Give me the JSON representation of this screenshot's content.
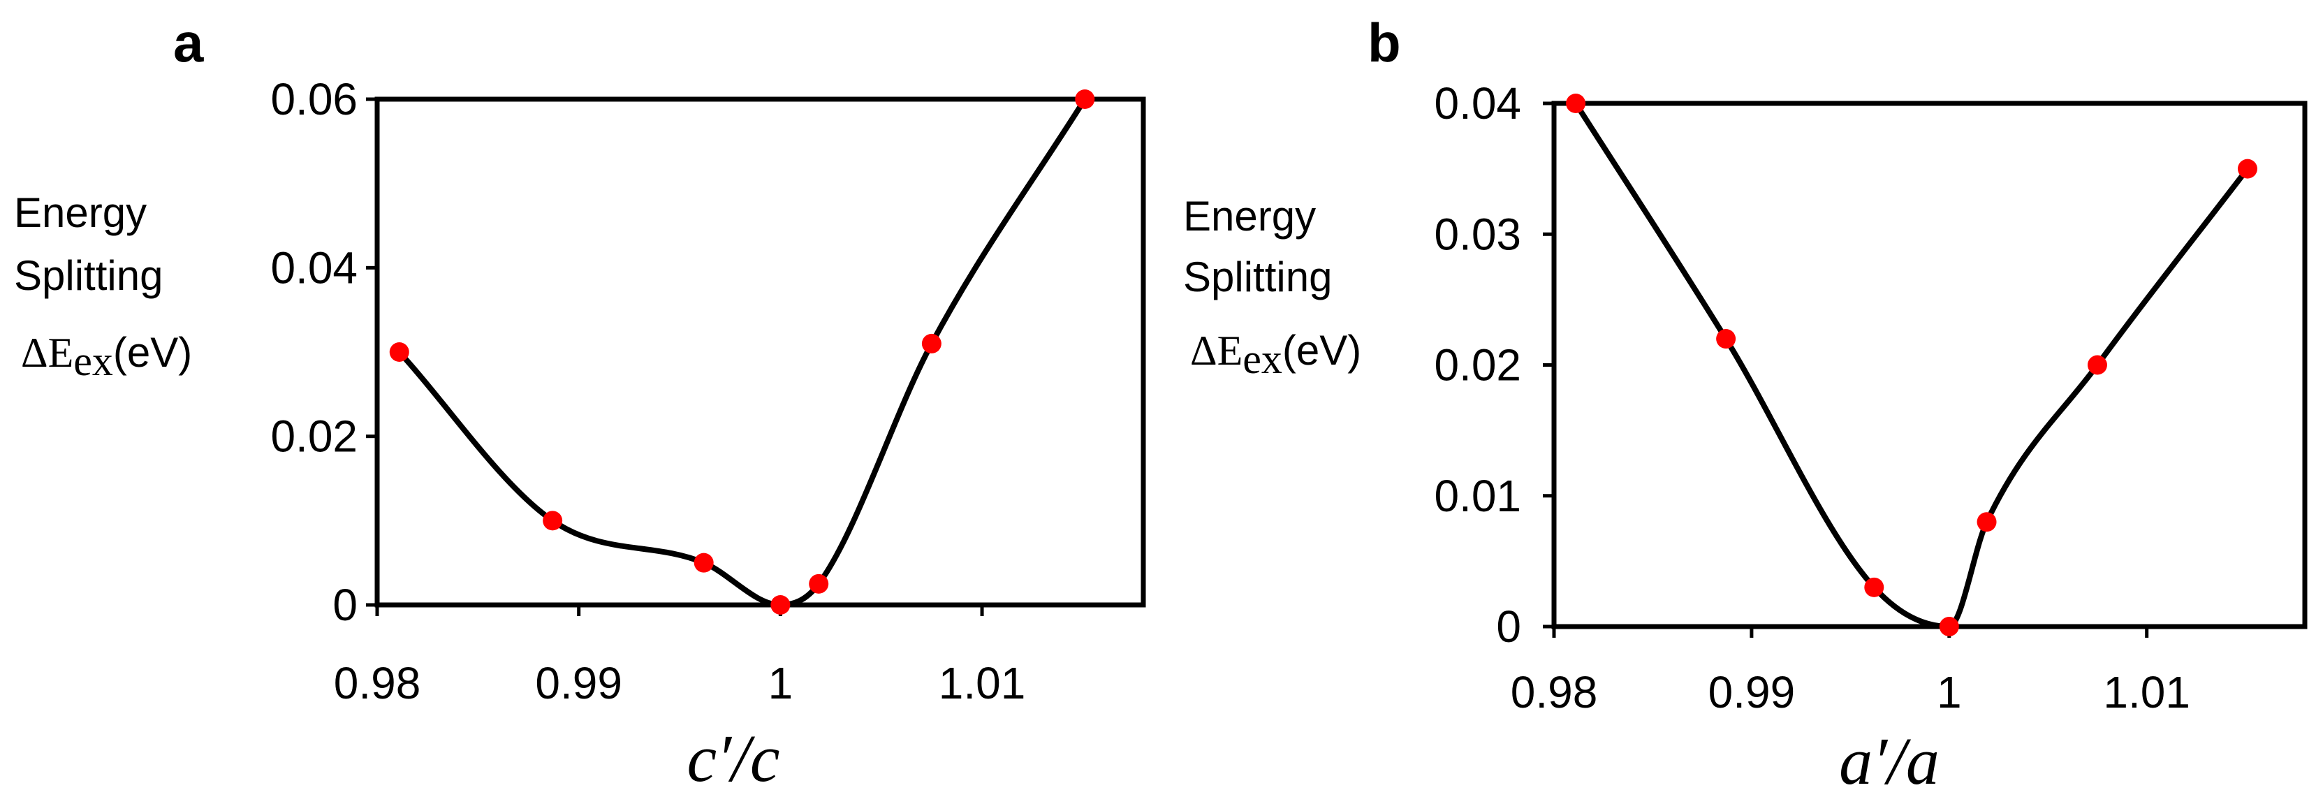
{
  "chart_data": [
    {
      "panel": "a",
      "type": "line",
      "title": "",
      "xlabel": "c′/c",
      "ylabel_lines": [
        "Energy",
        "Splitting",
        "ΔE_ex(eV)"
      ],
      "ylabel_symbol": "ΔE",
      "ylabel_subscript": "ex",
      "ylabel_unit": "(eV)",
      "xlim": [
        0.98,
        1.018
      ],
      "ylim": [
        0,
        0.06
      ],
      "xticks": [
        0.98,
        0.99,
        1,
        1.01
      ],
      "xtick_labels": [
        "0.98",
        "0.99",
        "1",
        "1.01"
      ],
      "yticks": [
        0,
        0.02,
        0.04,
        0.06
      ],
      "ytick_labels": [
        "0",
        "0.02",
        "0.04",
        "0.06"
      ],
      "series": [
        {
          "name": "Energy Splitting",
          "x": [
            0.9811,
            0.9887,
            0.9962,
            1.0,
            1.0019,
            1.0075,
            1.0151
          ],
          "y": [
            0.03,
            0.01,
            0.005,
            0.0,
            0.0025,
            0.031,
            0.06
          ]
        }
      ],
      "line_color": "#000000",
      "marker_color": "#ff0000",
      "grid": false
    },
    {
      "panel": "b",
      "type": "line",
      "title": "",
      "xlabel": "a′/a",
      "ylabel_lines": [
        "Energy",
        "Splitting",
        "ΔE_ex(eV)"
      ],
      "ylabel_symbol": "ΔE",
      "ylabel_subscript": "ex",
      "ylabel_unit": "(eV)",
      "xlim": [
        0.98,
        1.018
      ],
      "ylim": [
        0,
        0.04
      ],
      "xticks": [
        0.98,
        0.99,
        1,
        1.01
      ],
      "xtick_labels": [
        "0.98",
        "0.99",
        "1",
        "1.01"
      ],
      "yticks": [
        0,
        0.01,
        0.02,
        0.03,
        0.04
      ],
      "ytick_labels": [
        "0",
        "0.01",
        "0.02",
        "0.03",
        "0.04"
      ],
      "series": [
        {
          "name": "Energy Splitting",
          "x": [
            0.9811,
            0.9887,
            0.9962,
            1.0,
            1.0019,
            1.0075,
            1.0151
          ],
          "y": [
            0.04,
            0.022,
            0.003,
            0.0,
            0.008,
            0.02,
            0.035
          ]
        }
      ],
      "line_color": "#000000",
      "marker_color": "#ff0000",
      "grid": false
    }
  ]
}
